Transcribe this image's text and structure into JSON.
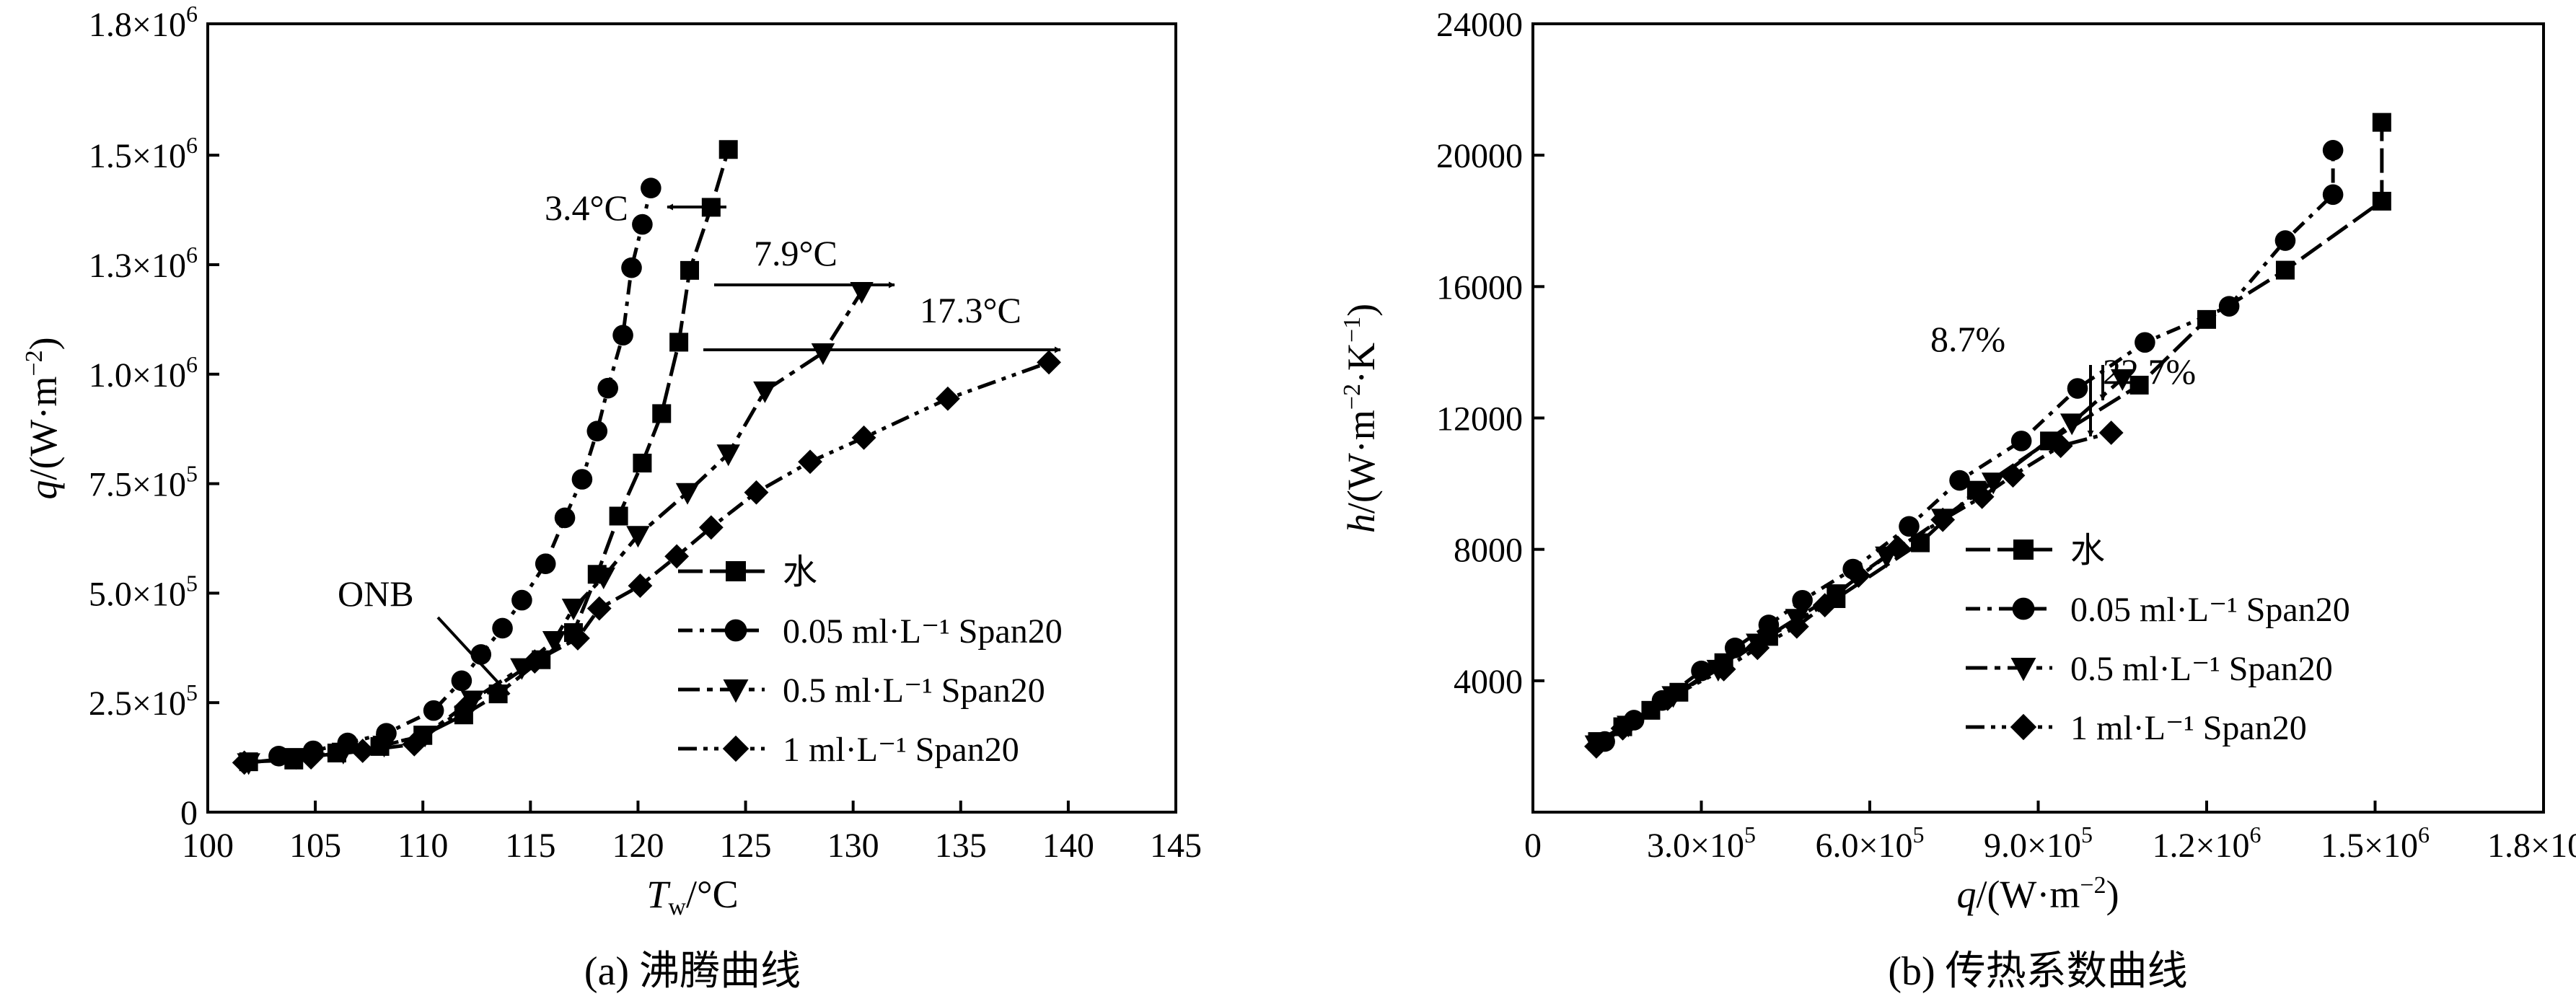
{
  "figure": {
    "caption_a": "(a) 沸腾曲线",
    "caption_b": "(b) 传热系数曲线"
  },
  "legend": [
    {
      "marker": "square",
      "label": "水"
    },
    {
      "marker": "circle",
      "label": "0.05 ml·L⁻¹ Span20"
    },
    {
      "marker": "triangle-down",
      "label": "0.5 ml·L⁻¹ Span20"
    },
    {
      "marker": "diamond",
      "label": "1 ml·L⁻¹ Span20"
    }
  ],
  "chart_data": [
    {
      "type": "line",
      "xlabel_main": "T",
      "xlabel_sub": "w",
      "xlabel_rest": "/°C",
      "ylabel_var": "q",
      "ylabel_rest": "/(W·m",
      "ylabel_exp": "−2",
      "ylabel_close": ")",
      "xlim": [
        100,
        145
      ],
      "ylim": [
        0,
        1800000
      ],
      "xticks": [
        {
          "v": 100,
          "label": "100"
        },
        {
          "v": 105,
          "label": "105"
        },
        {
          "v": 110,
          "label": "110"
        },
        {
          "v": 115,
          "label": "115"
        },
        {
          "v": 120,
          "label": "120"
        },
        {
          "v": 125,
          "label": "125"
        },
        {
          "v": 130,
          "label": "130"
        },
        {
          "v": 135,
          "label": "135"
        },
        {
          "v": 140,
          "label": "140"
        },
        {
          "v": 145,
          "label": "145"
        }
      ],
      "yticks": [
        {
          "v": 0,
          "m": "0",
          "e": ""
        },
        {
          "v": 250000,
          "m": "2.5×10",
          "e": "5"
        },
        {
          "v": 500000,
          "m": "5.0×10",
          "e": "5"
        },
        {
          "v": 750000,
          "m": "7.5×10",
          "e": "5"
        },
        {
          "v": 1000000,
          "m": "1.0×10",
          "e": "6"
        },
        {
          "v": 1250000,
          "m": "1.3×10",
          "e": "6"
        },
        {
          "v": 1500000,
          "m": "1.5×10",
          "e": "6"
        },
        {
          "v": 1800000,
          "m": "1.8×10",
          "e": "6"
        }
      ],
      "series": [
        {
          "name": "水",
          "marker": "square",
          "points": [
            [
              101.9,
              115000
            ],
            [
              104.0,
              119000
            ],
            [
              106.0,
              135000
            ],
            [
              108.0,
              150000
            ],
            [
              110.0,
              175000
            ],
            [
              111.9,
              222000
            ],
            [
              113.5,
              270000
            ],
            [
              115.5,
              348000
            ],
            [
              117.0,
              410000
            ],
            [
              118.1,
              543000
            ],
            [
              119.1,
              676000
            ],
            [
              120.2,
              797000
            ],
            [
              121.1,
              910000
            ],
            [
              121.9,
              1073000
            ],
            [
              122.4,
              1237000
            ],
            [
              123.4,
              1381000
            ],
            [
              124.2,
              1513000
            ]
          ]
        },
        {
          "name": "0.05 ml·L⁻¹ Span20",
          "marker": "circle",
          "points": [
            [
              103.3,
              128000
            ],
            [
              104.9,
              140000
            ],
            [
              106.5,
              158000
            ],
            [
              108.3,
              180000
            ],
            [
              110.5,
              232000
            ],
            [
              111.8,
              300000
            ],
            [
              112.7,
              360000
            ],
            [
              113.7,
              420000
            ],
            [
              114.6,
              484000
            ],
            [
              115.7,
              567000
            ],
            [
              116.6,
              672000
            ],
            [
              117.4,
              760000
            ],
            [
              118.1,
              870000
            ],
            [
              118.6,
              968000
            ],
            [
              119.3,
              1089000
            ],
            [
              119.7,
              1243000
            ],
            [
              120.2,
              1342000
            ],
            [
              120.6,
              1425000
            ]
          ]
        },
        {
          "name": "0.5 ml·L⁻¹ Span20",
          "marker": "triangle-down",
          "points": [
            [
              101.9,
              113000
            ],
            [
              104.1,
              125000
            ],
            [
              106.3,
              137000
            ],
            [
              108.2,
              153000
            ],
            [
              110.1,
              176000
            ],
            [
              112.3,
              256000
            ],
            [
              114.6,
              330000
            ],
            [
              116.1,
              392000
            ],
            [
              117.0,
              466000
            ],
            [
              118.4,
              537000
            ],
            [
              120.0,
              632000
            ],
            [
              122.3,
              730000
            ],
            [
              124.2,
              818000
            ],
            [
              125.9,
              962000
            ],
            [
              128.6,
              1049000
            ],
            [
              130.4,
              1189000
            ]
          ]
        },
        {
          "name": "1 ml·L⁻¹ Span20",
          "marker": "diamond",
          "points": [
            [
              101.7,
              113000
            ],
            [
              104.8,
              125000
            ],
            [
              107.2,
              140000
            ],
            [
              109.6,
              155000
            ],
            [
              112.0,
              240000
            ],
            [
              115.2,
              344000
            ],
            [
              117.2,
              397000
            ],
            [
              118.2,
              465000
            ],
            [
              120.1,
              517000
            ],
            [
              121.8,
              584000
            ],
            [
              123.4,
              650000
            ],
            [
              125.5,
              730000
            ],
            [
              128.0,
              800000
            ],
            [
              130.5,
              855000
            ],
            [
              134.4,
              944000
            ],
            [
              139.1,
              1027000
            ]
          ]
        }
      ],
      "annotations": [
        {
          "text": "3.4°C"
        },
        {
          "text": "7.9°C"
        },
        {
          "text": "17.3°C"
        },
        {
          "text": "ONB"
        }
      ]
    },
    {
      "type": "line",
      "xlabel_var": "q",
      "xlabel_rest": "/(W·m",
      "xlabel_exp": "−2",
      "xlabel_close": ")",
      "ylabel_var": "h",
      "ylabel_rest": "/(W·m",
      "ylabel_exp1": "−2",
      "ylabel_mid": "·K",
      "ylabel_exp2": "−1",
      "ylabel_close": ")",
      "xlim": [
        0,
        1800000
      ],
      "ylim": [
        0,
        24000
      ],
      "xticks": [
        {
          "v": 0,
          "m": "0",
          "e": ""
        },
        {
          "v": 300000,
          "m": "3.0×10",
          "e": "5"
        },
        {
          "v": 600000,
          "m": "6.0×10",
          "e": "5"
        },
        {
          "v": 900000,
          "m": "9.0×10",
          "e": "5"
        },
        {
          "v": 1200000,
          "m": "1.2×10",
          "e": "6"
        },
        {
          "v": 1500000,
          "m": "1.5×10",
          "e": "6"
        },
        {
          "v": 1800000,
          "m": "1.8×10",
          "e": "6"
        }
      ],
      "yticks": [
        {
          "v": 4000,
          "label": "4000"
        },
        {
          "v": 8000,
          "label": "8000"
        },
        {
          "v": 12000,
          "label": "12000"
        },
        {
          "v": 16000,
          "label": "16000"
        },
        {
          "v": 20000,
          "label": "20000"
        },
        {
          "v": 24000,
          "label": "24000"
        }
      ],
      "series": [
        {
          "name": "水",
          "marker": "square",
          "points": [
            [
              115000,
              2150
            ],
            [
              160000,
              2600
            ],
            [
              210000,
              3100
            ],
            [
              260000,
              3650
            ],
            [
              340000,
              4550
            ],
            [
              420000,
              5350
            ],
            [
              540000,
              6500
            ],
            [
              690000,
              8200
            ],
            [
              790000,
              9800
            ],
            [
              920000,
              11300
            ],
            [
              1080000,
              13000
            ],
            [
              1200000,
              15000
            ],
            [
              1340000,
              16500
            ],
            [
              1512000,
              18600
            ],
            [
              1512000,
              21000
            ]
          ]
        },
        {
          "name": "0.05 ml·L⁻¹ Span20",
          "marker": "circle",
          "points": [
            [
              128000,
              2150
            ],
            [
              180000,
              2800
            ],
            [
              230000,
              3400
            ],
            [
              300000,
              4300
            ],
            [
              360000,
              5000
            ],
            [
              420000,
              5700
            ],
            [
              480000,
              6450
            ],
            [
              570000,
              7400
            ],
            [
              670000,
              8700
            ],
            [
              760000,
              10100
            ],
            [
              870000,
              11300
            ],
            [
              970000,
              12900
            ],
            [
              1090000,
              14300
            ],
            [
              1240000,
              15400
            ],
            [
              1340000,
              17400
            ],
            [
              1425000,
              18800
            ],
            [
              1425000,
              20150
            ]
          ]
        },
        {
          "name": "0.5 ml·L⁻¹ Span20",
          "marker": "triangle-down",
          "points": [
            [
              113000,
              2050
            ],
            [
              170000,
              2650
            ],
            [
              250000,
              3550
            ],
            [
              330000,
              4350
            ],
            [
              400000,
              5150
            ],
            [
              470000,
              5900
            ],
            [
              540000,
              6650
            ],
            [
              630000,
              7800
            ],
            [
              730000,
              8950
            ],
            [
              820000,
              10050
            ],
            [
              960000,
              11850
            ],
            [
              1050000,
              13200
            ]
          ]
        },
        {
          "name": "1 ml·L⁻¹ Span20",
          "marker": "diamond",
          "points": [
            [
              113000,
              2000
            ],
            [
              160000,
              2550
            ],
            [
              240000,
              3450
            ],
            [
              340000,
              4350
            ],
            [
              400000,
              5000
            ],
            [
              470000,
              5650
            ],
            [
              520000,
              6300
            ],
            [
              580000,
              7200
            ],
            [
              650000,
              8050
            ],
            [
              730000,
              8900
            ],
            [
              800000,
              9600
            ],
            [
              855000,
              10250
            ],
            [
              940000,
              11150
            ],
            [
              1030000,
              11550
            ]
          ]
        }
      ],
      "annotations": [
        {
          "text": "8.7%"
        },
        {
          "text": "22.7%"
        }
      ]
    }
  ]
}
